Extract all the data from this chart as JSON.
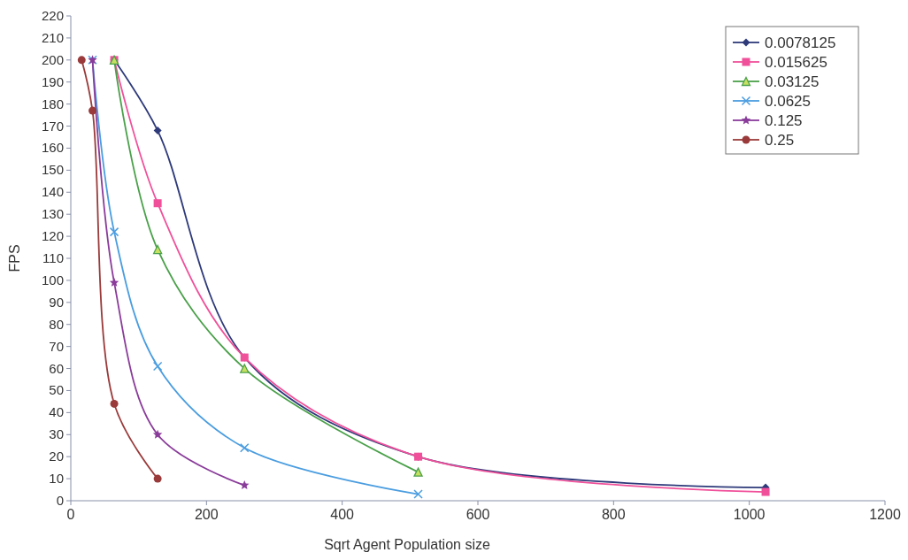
{
  "chart_data": {
    "type": "line",
    "xlabel": "Sqrt Agent Population size",
    "ylabel": "FPS",
    "xlim": [
      0,
      1200
    ],
    "xticks": [
      0,
      200,
      400,
      600,
      800,
      1000,
      1200
    ],
    "ylim": [
      0,
      220
    ],
    "yticks": [
      0,
      10,
      20,
      30,
      40,
      50,
      60,
      70,
      80,
      90,
      100,
      110,
      120,
      130,
      140,
      150,
      160,
      170,
      180,
      190,
      200,
      210,
      220
    ],
    "grid": false,
    "legend": "top right",
    "series": [
      {
        "name": "0.0078125",
        "color": "#2e3a7a",
        "marker": "diamond",
        "x": [
          64,
          128,
          256,
          512,
          1024
        ],
        "values": [
          200,
          168,
          65,
          20,
          6
        ]
      },
      {
        "name": "0.015625",
        "color": "#f0509a",
        "marker": "square",
        "x": [
          64,
          128,
          256,
          512,
          1024
        ],
        "values": [
          200,
          135,
          65,
          20,
          4
        ]
      },
      {
        "name": "0.03125",
        "color": "#4aa04a",
        "marker": "triangle",
        "x": [
          64,
          128,
          256,
          512
        ],
        "values": [
          200,
          114,
          60,
          13
        ]
      },
      {
        "name": "0.0625",
        "color": "#4a9de0",
        "marker": "cross",
        "x": [
          32,
          64,
          128,
          256,
          512
        ],
        "values": [
          200,
          122,
          61,
          24,
          3
        ]
      },
      {
        "name": "0.125",
        "color": "#8a3c9a",
        "marker": "star",
        "x": [
          32,
          64,
          128,
          256
        ],
        "values": [
          200,
          99,
          30,
          7
        ]
      },
      {
        "name": "0.25",
        "color": "#9a3a3a",
        "marker": "circle",
        "x": [
          16,
          32,
          64,
          128
        ],
        "values": [
          200,
          177,
          44,
          10
        ]
      }
    ]
  }
}
